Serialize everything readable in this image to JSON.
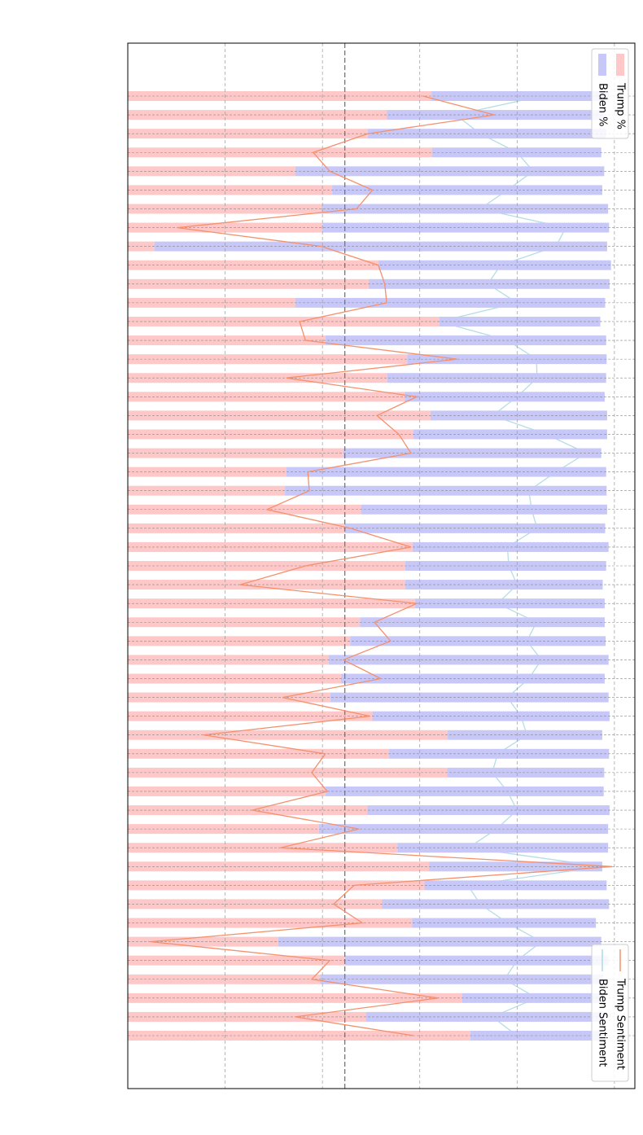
{
  "chart_data": {
    "type": "stacked_bar_line",
    "categories": [
      null,
      null,
      null,
      null,
      null,
      null,
      null,
      null,
      null,
      null,
      null,
      null,
      null,
      null,
      null,
      null,
      null,
      null,
      null,
      null,
      null,
      null,
      null,
      null,
      null,
      null,
      null,
      null,
      null,
      null,
      null,
      null,
      null,
      null,
      null,
      null,
      null,
      null,
      null,
      null,
      null,
      null,
      null,
      null,
      null,
      null,
      null,
      null,
      null,
      null,
      null
    ],
    "series": [
      {
        "name": "Trump %",
        "color": "#ffc8c8",
        "kind": "bar",
        "values": [
          62.4,
          53.2,
          49.3,
          62.5,
          34.4,
          42.0,
          39.8,
          40.0,
          5.5,
          51.5,
          49.5,
          34.4,
          64.0,
          40.6,
          57.4,
          53.3,
          56.9,
          62.2,
          58.7,
          44.3,
          32.6,
          32.3,
          48.0,
          44.6,
          58.5,
          57.0,
          57.0,
          59.0,
          47.7,
          45.7,
          41.3,
          43.8,
          41.6,
          50.2,
          65.7,
          53.7,
          65.6,
          40.6,
          49.2,
          39.3,
          55.4,
          61.9,
          60.9,
          52.2,
          58.4,
          30.9,
          44.6,
          39.5,
          68.7,
          49.0,
          70.4
        ]
      },
      {
        "name": "Biden %",
        "color": "#c8c8f8",
        "kind": "bar",
        "values": [
          36.5,
          44.6,
          49.0,
          34.8,
          63.5,
          55.5,
          58.9,
          58.9,
          93.0,
          47.8,
          49.5,
          63.7,
          33.1,
          57.7,
          41.0,
          45.0,
          41.1,
          36.3,
          39.8,
          53.0,
          65.7,
          66.1,
          50.5,
          53.5,
          40.3,
          41.3,
          40.6,
          39.0,
          50.3,
          52.5,
          57.5,
          54.2,
          57.2,
          48.8,
          31.8,
          45.2,
          32.3,
          57.2,
          49.8,
          59.4,
          43.3,
          35.6,
          37.5,
          46.7,
          37.8,
          66.4,
          54.2,
          58.2,
          29.1,
          48.8,
          27.1
        ]
      },
      {
        "name": "Trump Sentiment",
        "color": "#f4906c",
        "kind": "line",
        "values": [
          60.7,
          75.3,
          49.3,
          38.1,
          41.5,
          50.3,
          47.0,
          10.2,
          39.8,
          51.5,
          52.8,
          53.2,
          35.3,
          36.5,
          67.7,
          32.6,
          59.4,
          51.2,
          55.7,
          58.2,
          37.0,
          37.3,
          28.6,
          45.7,
          58.2,
          36.5,
          23.1,
          59.4,
          50.7,
          54.0,
          44.3,
          52.0,
          31.8,
          49.8,
          15.6,
          40.6,
          37.8,
          41.0,
          25.6,
          47.5,
          31.4,
          99.5,
          46.5,
          42.3,
          48.2,
          4.7,
          41.5,
          37.8,
          63.7,
          34.4,
          58.7
        ]
      },
      {
        "name": "Biden Sentiment",
        "color": "#add8e6",
        "kind": "line",
        "values": [
          85.0,
          67.4,
          72.4,
          80.0,
          83.3,
          78.0,
          72.4,
          90.0,
          88.0,
          76.6,
          74.0,
          80.0,
          64.0,
          78.0,
          84.0,
          84.1,
          80.0,
          75.0,
          86.0,
          94.2,
          88.0,
          82.4,
          83.0,
          84.1,
          78.0,
          78.3,
          80.0,
          76.0,
          84.0,
          82.0,
          85.0,
          82.4,
          78.0,
          80.8,
          82.0,
          76.0,
          74.9,
          78.0,
          80.0,
          75.8,
          70.0,
          97.5,
          69.9,
          72.4,
          78.0,
          85.0,
          80.0,
          77.4,
          84.0,
          74.9,
          80.0
        ]
      }
    ],
    "xlim": [
      0,
      104.2
    ],
    "xticks": [
      20,
      40,
      60,
      80,
      100
    ],
    "grid": true,
    "reference_line": 44.6
  }
}
